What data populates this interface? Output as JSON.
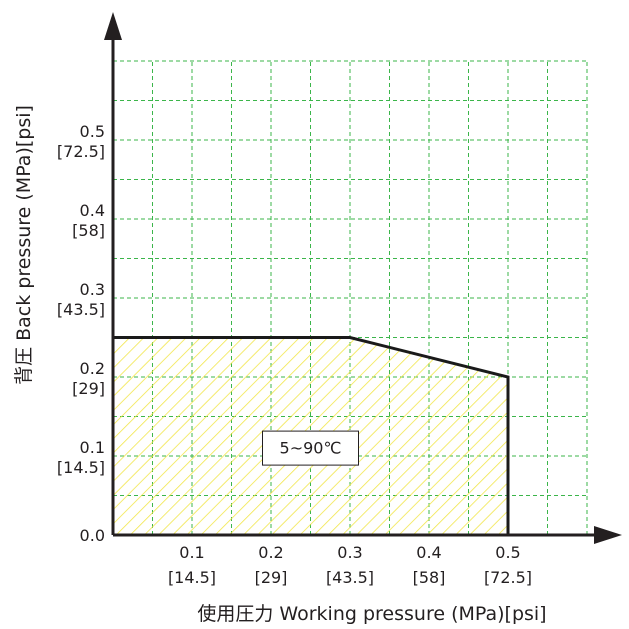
{
  "chart_data": {
    "type": "area",
    "xlabel": "使用圧力 Working pressure (MPa)[psi]",
    "ylabel": "背圧 Back pressure (MPa)[psi]",
    "xlim": [
      0,
      0.6
    ],
    "ylim": [
      0,
      0.6
    ],
    "grid": true,
    "x_ticks": [
      {
        "value": 0.1,
        "mpa": "0.1",
        "psi": "[14.5]"
      },
      {
        "value": 0.2,
        "mpa": "0.2",
        "psi": "[29]"
      },
      {
        "value": 0.3,
        "mpa": "0.3",
        "psi": "[43.5]"
      },
      {
        "value": 0.4,
        "mpa": "0.4",
        "psi": "[58]"
      },
      {
        "value": 0.5,
        "mpa": "0.5",
        "psi": "[72.5]"
      }
    ],
    "y_ticks": [
      {
        "value": 0.0,
        "mpa": "0.0",
        "psi": ""
      },
      {
        "value": 0.1,
        "mpa": "0.1",
        "psi": "[14.5]"
      },
      {
        "value": 0.2,
        "mpa": "0.2",
        "psi": "[29]"
      },
      {
        "value": 0.3,
        "mpa": "0.3",
        "psi": "[43.5]"
      },
      {
        "value": 0.4,
        "mpa": "0.4",
        "psi": "[58]"
      },
      {
        "value": 0.5,
        "mpa": "0.5",
        "psi": "[72.5]"
      }
    ],
    "region": {
      "points": [
        {
          "x": 0.0,
          "y": 0.0
        },
        {
          "x": 0.0,
          "y": 0.25
        },
        {
          "x": 0.3,
          "y": 0.25
        },
        {
          "x": 0.5,
          "y": 0.2
        },
        {
          "x": 0.5,
          "y": 0.0
        }
      ],
      "label": "5~90℃",
      "label_at": {
        "x": 0.25,
        "y": 0.11
      },
      "fill_color": "#f2e64a",
      "line_color": "#1a1a1a"
    },
    "grid_color": "#3bb54a",
    "axis_color": "#231f20"
  }
}
